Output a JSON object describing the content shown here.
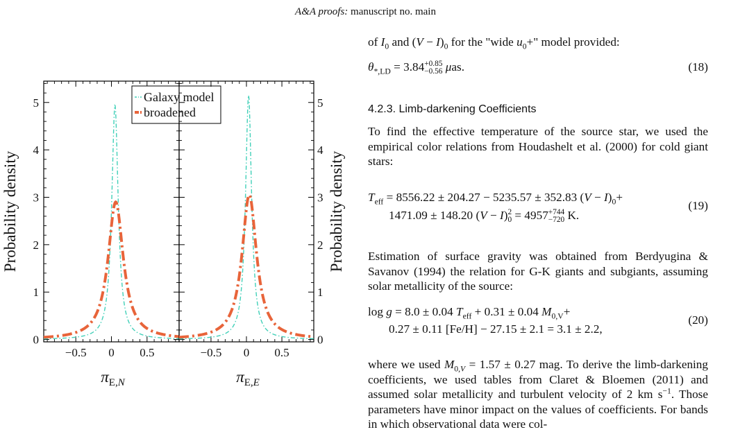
{
  "header": {
    "journal": "A&A proofs:",
    "manuscript": "manuscript no. main"
  },
  "chart_data": [
    {
      "type": "line",
      "xlabel": "π_E,N",
      "ylabel": "Probability density",
      "xlim": [
        -0.95,
        0.95
      ],
      "ylim": [
        -0.05,
        5.45
      ],
      "xticks": [
        -0.5,
        0,
        0.5
      ],
      "yticks": [
        0,
        1,
        2,
        3,
        4,
        5
      ],
      "xtick_labels": [
        "−0.5",
        "0",
        "0.5"
      ],
      "ytick_labels": [
        "0",
        "1",
        "2",
        "3",
        "4",
        "5"
      ],
      "grid": false,
      "legend_position": "top-right",
      "series": [
        {
          "name": "Galaxy model",
          "color": "#40d0b8",
          "style": "dash-dot",
          "center": 0.05,
          "peak": 4.95,
          "width": 0.055
        },
        {
          "name": "broadened",
          "color": "#e8643a",
          "style": "thick-dash-dot",
          "center": 0.06,
          "peak": 2.9,
          "width": 0.13
        }
      ]
    },
    {
      "type": "line",
      "xlabel": "π_E,E",
      "ylabel": "Probability density",
      "xlim": [
        -0.95,
        0.95
      ],
      "ylim": [
        -0.05,
        5.45
      ],
      "xticks": [
        -0.5,
        0,
        0.5
      ],
      "yticks": [
        0,
        1,
        2,
        3,
        4,
        5
      ],
      "xtick_labels": [
        "−0.5",
        "0",
        "0.5"
      ],
      "ytick_labels": [
        "0",
        "1",
        "2",
        "3",
        "4",
        "5"
      ],
      "grid": false,
      "series": [
        {
          "name": "Galaxy model",
          "color": "#40d0b8",
          "style": "dash-dot",
          "center": 0.03,
          "peak": 5.15,
          "width": 0.052
        },
        {
          "name": "broadened",
          "color": "#e8643a",
          "style": "thick-dash-dot",
          "center": 0.04,
          "peak": 3.05,
          "width": 0.125
        }
      ]
    }
  ],
  "text": {
    "intro": "of I0 and (V − I)0 for the \"wide u0+\" model provided:",
    "eq18": "θ*,LD = 3.84 +0.85 −0.56 μas.",
    "eq18_num": "(18)",
    "section_heading": "4.2.3. Limb-darkening Coefficients",
    "para1": "To find the effective temperature of the source star, we used the empirical color relations from Houdashelt et al. (2000) for cold giant stars:",
    "eq19_line1": "Teff = 8556.22 ± 204.27 − 5235.57 ± 352.83 (V − I)0+",
    "eq19_line2": "1471.09 ± 148.20 (V − I)0^2 = 4957 +744 −720 K.",
    "eq19_num": "(19)",
    "para2": "Estimation of surface gravity was obtained from Berdyugina & Savanov (1994) the relation for G-K giants and subgiants, assuming solar metallicity of the source:",
    "eq20_line1": "log g = 8.0 ± 0.04 Teff + 0.31 ± 0.04 M0,V+",
    "eq20_line2": "0.27 ± 0.11 [Fe/H] − 27.15 ± 2.1 = 3.1 ± 2.2,",
    "eq20_num": "(20)",
    "para3": "where we used M0,V = 1.57 ± 0.27 mag. To derive the limb-darkening coefficients, we used tables from Claret & Bloemen (2011) and assumed solar metallicity and turbulent velocity of 2 km s−1. Those parameters have minor impact on the values of coefficients. For bands in which observational data were col-"
  }
}
